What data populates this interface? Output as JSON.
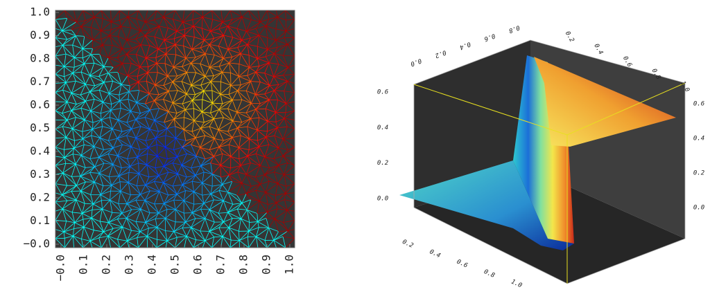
{
  "chart_data": [
    {
      "type": "mesh",
      "xlim": [
        0,
        1
      ],
      "ylim": [
        0,
        1
      ],
      "xticks": [
        {
          "value": 0,
          "label": "−0.0"
        },
        0.1,
        0.2,
        0.3,
        0.4,
        0.5,
        0.6,
        0.7,
        0.8,
        0.9,
        {
          "value": 1,
          "label": "1.0"
        }
      ],
      "yticks": [
        {
          "value": 0,
          "label": "−0.0"
        },
        0.1,
        0.2,
        0.3,
        0.4,
        0.5,
        0.6,
        0.7,
        0.8,
        0.9,
        {
          "value": 1,
          "label": "1.0"
        }
      ]
    },
    {
      "type": "surface3d",
      "zlim": [
        0,
        0.6
      ],
      "zticks": [
        {
          "value": 0,
          "label": "0.0"
        },
        0.2,
        0.4,
        0.6
      ],
      "zticks_right": [
        {
          "value": 0,
          "label": "0.0"
        },
        0.2,
        0.4,
        0.6
      ],
      "xticks_top": [
        {
          "value": 0,
          "label": "0.0"
        },
        0.2,
        0.4,
        0.6,
        0.8
      ],
      "yticks_top": [
        0.2,
        0.4,
        0.6,
        0.8,
        {
          "value": 1,
          "label": "1.0"
        }
      ],
      "xticks_bottom": [
        0.2,
        0.4,
        0.6,
        0.8,
        {
          "value": 1,
          "label": "1.0"
        }
      ]
    }
  ]
}
